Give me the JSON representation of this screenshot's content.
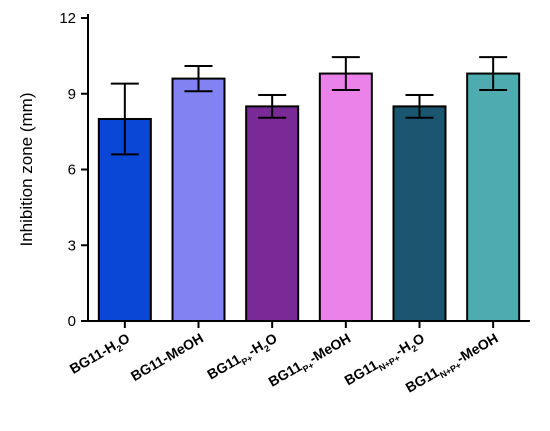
{
  "chart_data": {
    "type": "bar",
    "ylabel": "Inhibition zone (mm)",
    "xlabel": "",
    "ylim": [
      0,
      12
    ],
    "yticks": [
      0,
      3,
      6,
      9,
      12
    ],
    "grid": false,
    "categories": [
      {
        "main": "BG11-H",
        "sub": "2",
        "tail": "O"
      },
      {
        "main": "BG11-MeOH",
        "sub": "",
        "tail": ""
      },
      {
        "main": "BG11",
        "sub": "P+",
        "tail": "-H",
        "sub2": "2",
        "tail2": "O"
      },
      {
        "main": "BG11",
        "sub": "P+",
        "tail": "-MeOH"
      },
      {
        "main": "BG11",
        "sub": "N+P+",
        "tail": "-H",
        "sub2": "2",
        "tail2": "O"
      },
      {
        "main": "BG11",
        "sub": "N+P+",
        "tail": "-MeOH"
      }
    ],
    "values": [
      8.0,
      9.6,
      8.5,
      9.8,
      8.5,
      9.8
    ],
    "errors": [
      1.4,
      0.5,
      0.45,
      0.65,
      0.45,
      0.65
    ],
    "colors": [
      "#0a47d6",
      "#8282f2",
      "#7a2a96",
      "#ea82ea",
      "#1b5670",
      "#4eacb0"
    ]
  }
}
